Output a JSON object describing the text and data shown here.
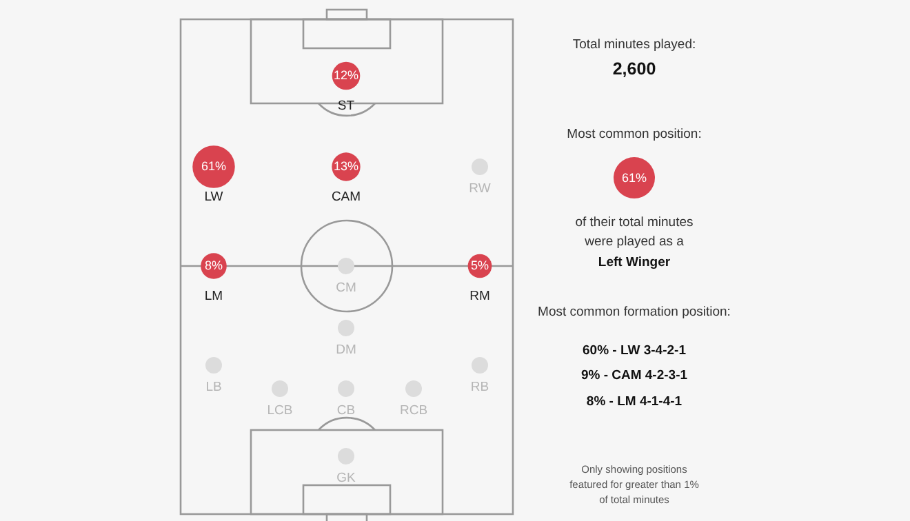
{
  "chart_data": {
    "type": "other",
    "categories": [
      "ST",
      "LW",
      "CAM",
      "RW",
      "LM",
      "CM",
      "RM",
      "DM",
      "LB",
      "RB",
      "LCB",
      "CB",
      "RCB",
      "GK"
    ],
    "values": [
      12,
      61,
      13,
      null,
      8,
      null,
      5,
      null,
      null,
      null,
      null,
      null,
      null,
      null
    ],
    "color": "#d9434f",
    "value_labels": [
      "12%",
      "61%",
      "13%",
      null,
      "8%",
      null,
      "5%",
      null,
      null,
      null,
      null,
      null,
      null,
      null
    ],
    "annotations": [
      "Total minutes played:",
      "2,600",
      "Most common position:",
      "61%",
      "of their total minutes were played as a",
      "Left Winger",
      "Most common formation position:",
      "60% - LW 3-4-2-1",
      "9% - CAM 4-2-3-1",
      "8% - LM 4-1-4-1",
      "Only showing positions featured for greater than 1% of total minutes"
    ]
  }
}
